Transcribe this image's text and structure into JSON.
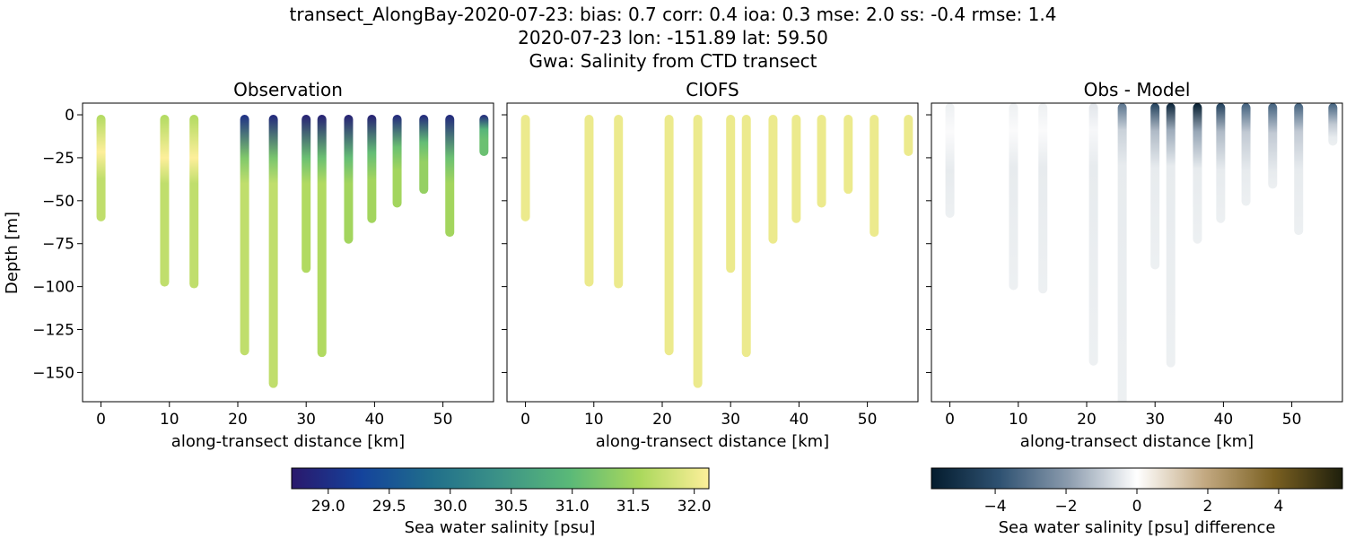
{
  "title_lines": [
    "transect_AlongBay-2020-07-23: bias: 0.7  corr: 0.4  ioa: 0.3  mse: 2.0  ss: -0.4  rmse: 1.4",
    "2020-07-23 lon: -151.89 lat: 59.50",
    "Gwa: Salinity from CTD transect"
  ],
  "chart_data": [
    {
      "type": "scatter",
      "title": "Observation",
      "xlabel": "along-transect distance [km]",
      "ylabel": "Depth [m]",
      "xlim": [
        -2.7,
        57.4
      ],
      "ylim": [
        -167,
        6.8
      ],
      "xticks": [
        0,
        10,
        20,
        30,
        40,
        50
      ],
      "yticks": [
        0,
        -25,
        -50,
        -75,
        -100,
        -125,
        -150
      ],
      "ytick_labels": [
        "0",
        "−25",
        "−50",
        "−75",
        "−100",
        "−125",
        "−150"
      ],
      "stations": [
        {
          "x": 0,
          "max_depth": 62,
          "surface_salinity": 31.6,
          "deep_salinity": 31.7
        },
        {
          "x": 9.3,
          "max_depth": 100,
          "surface_salinity": 31.6,
          "deep_salinity": 31.7
        },
        {
          "x": 13.6,
          "max_depth": 101,
          "surface_salinity": 31.6,
          "deep_salinity": 31.7
        },
        {
          "x": 21,
          "max_depth": 140,
          "surface_salinity": 29.0,
          "deep_salinity": 31.7
        },
        {
          "x": 25.2,
          "max_depth": 159,
          "surface_salinity": 28.9,
          "deep_salinity": 31.7
        },
        {
          "x": 30,
          "max_depth": 92,
          "surface_salinity": 28.8,
          "deep_salinity": 31.6
        },
        {
          "x": 32.3,
          "max_depth": 141,
          "surface_salinity": 28.8,
          "deep_salinity": 31.6
        },
        {
          "x": 36.2,
          "max_depth": 75,
          "surface_salinity": 28.8,
          "deep_salinity": 31.5
        },
        {
          "x": 39.6,
          "max_depth": 63,
          "surface_salinity": 28.8,
          "deep_salinity": 31.5
        },
        {
          "x": 43.3,
          "max_depth": 54,
          "surface_salinity": 28.9,
          "deep_salinity": 31.5
        },
        {
          "x": 47.2,
          "max_depth": 46,
          "surface_salinity": 28.9,
          "deep_salinity": 31.4
        },
        {
          "x": 51,
          "max_depth": 71,
          "surface_salinity": 28.9,
          "deep_salinity": 31.5
        },
        {
          "x": 56,
          "max_depth": 24,
          "surface_salinity": 28.9,
          "deep_salinity": 31.1
        }
      ]
    },
    {
      "type": "scatter",
      "title": "CIOFS",
      "xlabel": "along-transect distance [km]",
      "stations_salinity": 32.0
    },
    {
      "type": "scatter",
      "title": "Obs - Model",
      "xlabel": "along-transect distance [km]",
      "diff_stations": [
        {
          "x": 0,
          "max_depth": 60,
          "surface_diff": -0.3
        },
        {
          "x": 9.3,
          "max_depth": 102,
          "surface_diff": -0.3
        },
        {
          "x": 13.6,
          "max_depth": 104,
          "surface_diff": -0.3
        },
        {
          "x": 21,
          "max_depth": 146,
          "surface_diff": -0.5
        },
        {
          "x": 25.2,
          "max_depth": 170,
          "surface_diff": -3
        },
        {
          "x": 30,
          "max_depth": 90,
          "surface_diff": -4.5
        },
        {
          "x": 32.3,
          "max_depth": 147,
          "surface_diff": -5.5
        },
        {
          "x": 36.2,
          "max_depth": 75,
          "surface_diff": -5.8
        },
        {
          "x": 39.6,
          "max_depth": 63,
          "surface_diff": -4.5
        },
        {
          "x": 43.3,
          "max_depth": 53,
          "surface_diff": -3.5
        },
        {
          "x": 47.2,
          "max_depth": 43,
          "surface_diff": -3.5
        },
        {
          "x": 51,
          "max_depth": 70,
          "surface_diff": -3.5
        },
        {
          "x": 56,
          "max_depth": 18,
          "surface_diff": -3.5
        }
      ]
    }
  ],
  "colorbars": [
    {
      "label": "Sea water salinity [psu]",
      "range": [
        28.7,
        32.12
      ],
      "ticks": [
        "29.0",
        "29.5",
        "30.0",
        "30.5",
        "31.0",
        "31.5",
        "32.0"
      ],
      "colormap": "haline",
      "stops": [
        "#2a186c",
        "#14439c",
        "#206e8b",
        "#3c9387",
        "#5ab978",
        "#aad85c",
        "#fdef9a"
      ]
    },
    {
      "label": "Sea water salinity [psu] difference",
      "range": [
        -5.8,
        5.8
      ],
      "ticks": [
        "−4",
        "−2",
        "0",
        "2",
        "4"
      ],
      "tick_values": [
        -4,
        -2,
        0,
        2,
        4
      ],
      "colormap": "diff",
      "stops": [
        "#041c2e",
        "#2f5272",
        "#8c9cae",
        "#ffffff",
        "#c2a880",
        "#7a6021",
        "#1e1f0c"
      ]
    }
  ]
}
